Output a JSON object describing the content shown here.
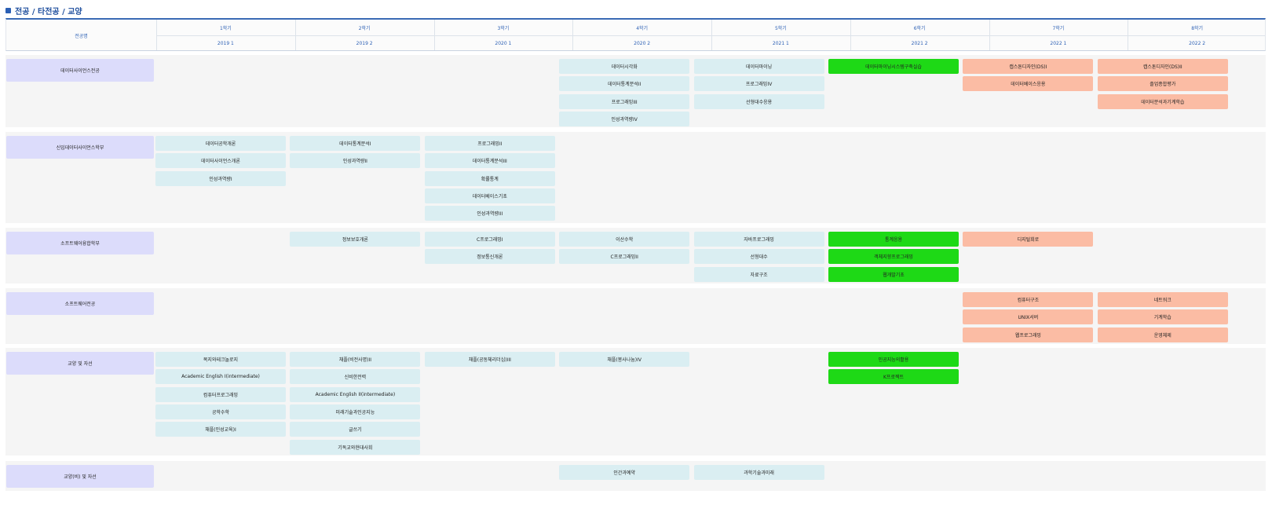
{
  "page_title": "전공 / 타전공 / 교양",
  "header": {
    "label": "전공명",
    "semesters": [
      "1학기",
      "2학기",
      "3학기",
      "4학기",
      "5학기",
      "6학기",
      "7학기",
      "8학기"
    ],
    "years": [
      "2019 1",
      "2019 2",
      "2020 1",
      "2020 2",
      "2021 1",
      "2021 2",
      "2022 1",
      "2022 2"
    ]
  },
  "colors": {
    "planned": "#daeef2",
    "current": "#1ed916",
    "future": "#fbbca4",
    "category": "#dcdcfb",
    "accent": "#2b5fb4"
  },
  "categories": [
    {
      "name": "데이터사이언스전공",
      "columns": [
        [],
        [],
        [],
        [
          {
            "t": "데이터시각화",
            "s": "planned"
          },
          {
            "t": "데이터통계분석II",
            "s": "planned"
          },
          {
            "t": "프로그래밍III",
            "s": "planned"
          },
          {
            "t": "인성과역량IV",
            "s": "planned"
          }
        ],
        [
          {
            "t": "데이터마이닝",
            "s": "planned"
          },
          {
            "t": "프로그래밍IV",
            "s": "planned"
          },
          {
            "t": "선형대수응용",
            "s": "planned"
          }
        ],
        [
          {
            "t": "데이터마이닝시스템구축실습",
            "s": "current"
          }
        ],
        [
          {
            "t": "캡스톤디자인(DS)I",
            "s": "future"
          },
          {
            "t": "데이터베이스응용",
            "s": "future"
          }
        ],
        [
          {
            "t": "캡스톤디자인(DS)II",
            "s": "future"
          },
          {
            "t": "졸업종합평가",
            "s": "future"
          },
          {
            "t": "데이터분석과기계학습",
            "s": "future"
          }
        ]
      ]
    },
    {
      "name": "신입데이터사이언스학부",
      "columns": [
        [
          {
            "t": "데이터공학개론",
            "s": "planned"
          },
          {
            "t": "데이터사이언스개론",
            "s": "planned"
          },
          {
            "t": "인성과역량I",
            "s": "planned"
          }
        ],
        [
          {
            "t": "데이터통계분석I",
            "s": "planned"
          },
          {
            "t": "인성과역량II",
            "s": "planned"
          }
        ],
        [
          {
            "t": "프로그래밍II",
            "s": "planned"
          },
          {
            "t": "데이터통계분석III",
            "s": "planned"
          },
          {
            "t": "확률통계",
            "s": "planned"
          },
          {
            "t": "데이터베이스기초",
            "s": "planned"
          },
          {
            "t": "인성과역량III",
            "s": "planned"
          }
        ],
        [],
        [],
        [],
        [],
        []
      ]
    },
    {
      "name": "소프트웨어융합학부",
      "columns": [
        [],
        [
          {
            "t": "정보보호개론",
            "s": "planned"
          }
        ],
        [
          {
            "t": "C프로그래밍I",
            "s": "planned"
          },
          {
            "t": "정보통신개론",
            "s": "planned"
          }
        ],
        [
          {
            "t": "이산수학",
            "s": "planned"
          },
          {
            "t": "C프로그래밍II",
            "s": "planned"
          }
        ],
        [
          {
            "t": "자바프로그래밍",
            "s": "planned"
          },
          {
            "t": "선형대수",
            "s": "planned"
          },
          {
            "t": "자료구조",
            "s": "planned"
          }
        ],
        [
          {
            "t": "통계응용",
            "s": "current"
          },
          {
            "t": "객체지향프로그래밍",
            "s": "current"
          },
          {
            "t": "웹개발기초",
            "s": "current"
          }
        ],
        [
          {
            "t": "디지털회로",
            "s": "future"
          }
        ],
        []
      ]
    },
    {
      "name": "소프트웨어전공",
      "columns": [
        [],
        [],
        [],
        [],
        [],
        [],
        [
          {
            "t": "컴퓨터구조",
            "s": "future"
          },
          {
            "t": "UNIX서버",
            "s": "future"
          },
          {
            "t": "웹프로그래밍",
            "s": "future"
          }
        ],
        [
          {
            "t": "네트워크",
            "s": "future"
          },
          {
            "t": "기계학습",
            "s": "future"
          },
          {
            "t": "운영체제",
            "s": "future"
          }
        ]
      ]
    },
    {
      "name": "교양 및 자선",
      "columns": [
        [
          {
            "t": "복지와테크놀로지",
            "s": "planned"
          },
          {
            "t": "Academic English I(intermediate)",
            "s": "planned"
          },
          {
            "t": "컴퓨터프로그래밍",
            "s": "planned"
          },
          {
            "t": "공학수학",
            "s": "planned"
          },
          {
            "t": "채플(인성교육)I",
            "s": "planned"
          }
        ],
        [
          {
            "t": "채플(비전사명)II",
            "s": "planned"
          },
          {
            "t": "신비한전력",
            "s": "planned"
          },
          {
            "t": "Academic English II(intermediate)",
            "s": "planned"
          },
          {
            "t": "미래기술과인공지능",
            "s": "planned"
          },
          {
            "t": "글쓰기",
            "s": "planned"
          },
          {
            "t": "기독교와현대사회",
            "s": "planned"
          }
        ],
        [
          {
            "t": "채플(공동체리더십)III",
            "s": "planned"
          }
        ],
        [
          {
            "t": "채플(봉사나눔)IV",
            "s": "planned"
          }
        ],
        [],
        [
          {
            "t": "인공지능의활용",
            "s": "current"
          },
          {
            "t": "K프로젝트",
            "s": "current"
          }
        ],
        [],
        []
      ]
    },
    {
      "name": "교양(비) 및 자선",
      "columns": [
        [],
        [],
        [],
        [
          {
            "t": "인간과예약",
            "s": "planned"
          }
        ],
        [
          {
            "t": "과학기술과미래",
            "s": "planned"
          }
        ],
        [],
        [],
        []
      ]
    }
  ]
}
